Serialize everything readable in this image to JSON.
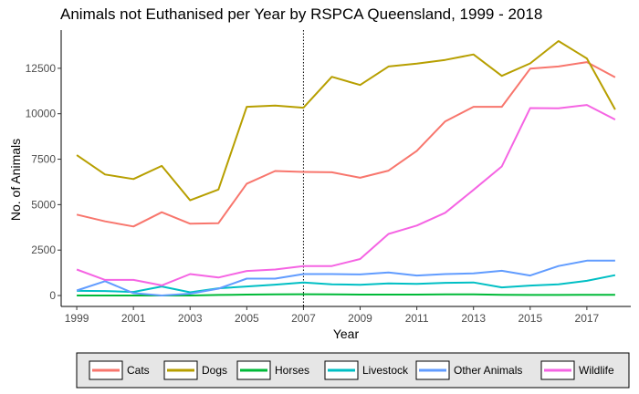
{
  "chart_data": {
    "type": "line",
    "title": "Animals not Euthanised per Year by RSPCA Queensland, 1999 - 2018",
    "xlabel": "Year",
    "ylabel": "No. of Animals",
    "x": [
      1999,
      2000,
      2001,
      2002,
      2003,
      2004,
      2005,
      2006,
      2007,
      2008,
      2009,
      2010,
      2011,
      2012,
      2013,
      2014,
      2015,
      2016,
      2017,
      2018
    ],
    "xlim": [
      1998.45,
      2018.55
    ],
    "ylim": [
      -600,
      14600
    ],
    "x_ticks": [
      "1999",
      "2001",
      "2003",
      "2005",
      "2007",
      "2009",
      "2011",
      "2013",
      "2015",
      "2017"
    ],
    "y_ticks": [
      "0",
      "2500",
      "5000",
      "7500",
      "10000",
      "12500"
    ],
    "reference_line_x": 2007,
    "grid": false,
    "legend_position": "bottom",
    "series": [
      {
        "name": "Cats",
        "color": "#F8766D",
        "values": [
          4450,
          4080,
          3800,
          4580,
          3950,
          3980,
          6150,
          6850,
          6800,
          6780,
          6480,
          6870,
          7960,
          9580,
          10380,
          10380,
          12480,
          12600,
          12840,
          12000
        ]
      },
      {
        "name": "Dogs",
        "color": "#B79F00",
        "values": [
          7720,
          6660,
          6410,
          7130,
          5240,
          5830,
          10380,
          10450,
          10330,
          12030,
          11580,
          12600,
          12760,
          12960,
          13260,
          12080,
          12770,
          14000,
          13040,
          10230
        ]
      },
      {
        "name": "Horses",
        "color": "#00BA38",
        "values": [
          0,
          0,
          0,
          0,
          0,
          30,
          50,
          60,
          70,
          60,
          50,
          50,
          50,
          60,
          60,
          40,
          30,
          30,
          40,
          40
        ]
      },
      {
        "name": "Livestock",
        "color": "#00BFC4",
        "values": [
          260,
          250,
          200,
          500,
          180,
          400,
          500,
          600,
          720,
          620,
          590,
          670,
          640,
          700,
          720,
          450,
          550,
          620,
          810,
          1120
        ]
      },
      {
        "name": "Other Animals",
        "color": "#619CFF",
        "values": [
          280,
          790,
          130,
          0,
          100,
          380,
          930,
          930,
          1180,
          1180,
          1160,
          1270,
          1100,
          1180,
          1220,
          1360,
          1100,
          1620,
          1920,
          1920
        ]
      },
      {
        "name": "Wildlife",
        "color": "#F564E3",
        "values": [
          1430,
          860,
          860,
          560,
          1180,
          990,
          1350,
          1430,
          1620,
          1620,
          2010,
          3390,
          3850,
          4550,
          5810,
          7100,
          10310,
          10300,
          10480,
          9680
        ]
      }
    ]
  }
}
